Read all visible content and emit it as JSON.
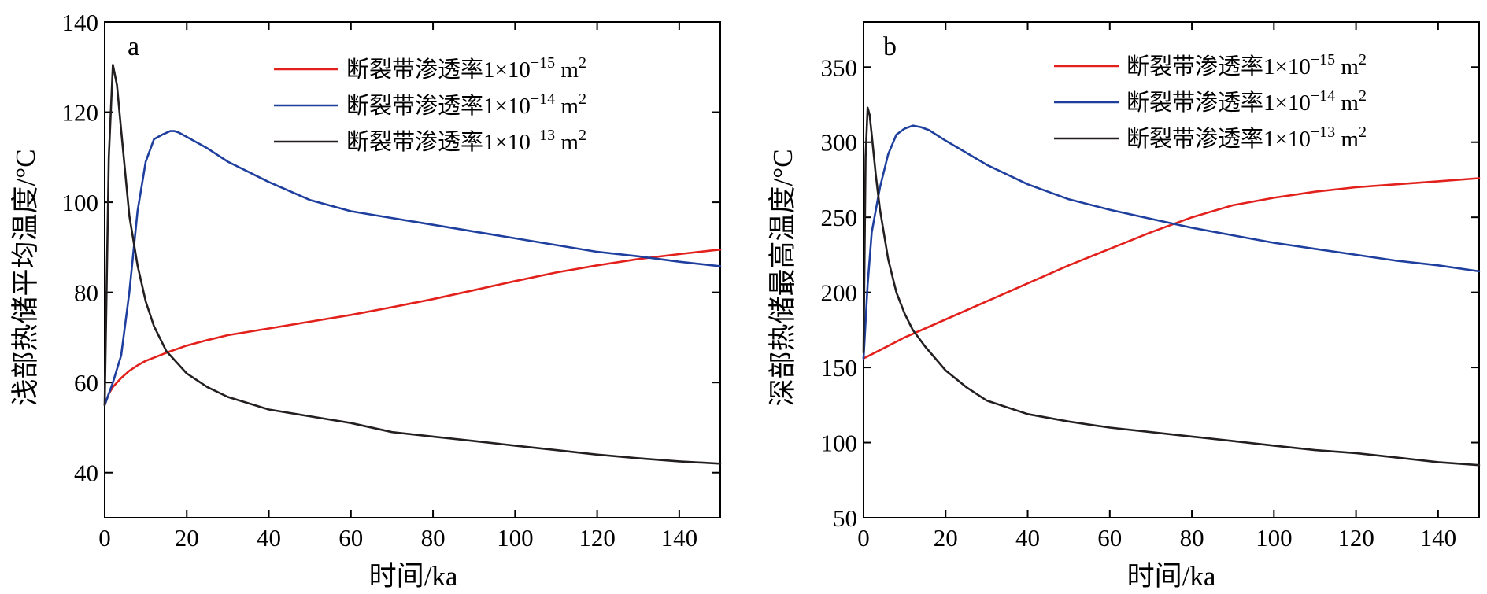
{
  "chart_data": [
    {
      "type": "line",
      "panel_label": "a",
      "xlabel": "时间/ka",
      "ylabel": "浅部热储平均温度/°C",
      "xlim": [
        0,
        150
      ],
      "ylim": [
        30,
        140
      ],
      "xticks": [
        0,
        20,
        40,
        60,
        80,
        100,
        120,
        140
      ],
      "yticks": [
        40,
        60,
        80,
        100,
        120,
        140
      ],
      "grid": false,
      "legend_position": "top-right",
      "series": [
        {
          "name": "断裂带渗透率1×10⁻¹⁵ m²",
          "legend_base": "断裂带渗透率1×10",
          "legend_exp": "−15",
          "legend_unit": "m",
          "legend_unit_exp": "2",
          "color": "#e3211c",
          "x": [
            0,
            1,
            2,
            4,
            6,
            8,
            10,
            15,
            20,
            25,
            30,
            40,
            50,
            60,
            70,
            80,
            90,
            100,
            110,
            120,
            130,
            140,
            150
          ],
          "y": [
            55,
            57.5,
            59,
            61,
            62.6,
            63.8,
            64.8,
            66.6,
            68.2,
            69.4,
            70.5,
            72,
            73.5,
            75,
            76.7,
            78.5,
            80.5,
            82.5,
            84.4,
            86,
            87.4,
            88.5,
            89.5
          ]
        },
        {
          "name": "断裂带渗透率1×10⁻¹⁴ m²",
          "legend_base": "断裂带渗透率1×10",
          "legend_exp": "−14",
          "legend_unit": "m",
          "legend_unit_exp": "2",
          "color": "#1f3f9e",
          "x": [
            0,
            2,
            4,
            6,
            8,
            10,
            12,
            14,
            16,
            17,
            18,
            20,
            25,
            30,
            40,
            50,
            60,
            70,
            80,
            90,
            100,
            110,
            120,
            130,
            140,
            150
          ],
          "y": [
            55,
            60,
            66,
            80,
            98,
            109,
            114,
            115,
            115.8,
            115.8,
            115.5,
            114.5,
            112,
            109,
            104.5,
            100.5,
            98,
            96.5,
            95,
            93.5,
            92,
            90.5,
            89,
            88,
            86.8,
            85.8
          ]
        },
        {
          "name": "断裂带渗透率1×10⁻¹³ m²",
          "legend_base": "断裂带渗透率1×10",
          "legend_exp": "−13",
          "legend_unit": "m",
          "legend_unit_exp": "2",
          "color": "#231f20",
          "x": [
            0,
            1,
            2,
            3,
            4,
            6,
            8,
            10,
            12,
            15,
            20,
            25,
            30,
            40,
            50,
            60,
            70,
            80,
            90,
            100,
            110,
            120,
            130,
            140,
            150
          ],
          "y": [
            55,
            110,
            130.5,
            126,
            116,
            97,
            86,
            78,
            72.5,
            67,
            62,
            59,
            56.8,
            54,
            52.5,
            51,
            49,
            48,
            47,
            46,
            45,
            44,
            43.2,
            42.5,
            42
          ]
        }
      ]
    },
    {
      "type": "line",
      "panel_label": "b",
      "xlabel": "时间/ka",
      "ylabel": "深部热储最高温度/°C",
      "xlim": [
        0,
        150
      ],
      "ylim": [
        50,
        380
      ],
      "xticks": [
        0,
        20,
        40,
        60,
        80,
        100,
        120,
        140
      ],
      "yticks": [
        50,
        100,
        150,
        200,
        250,
        300,
        350
      ],
      "grid": false,
      "legend_position": "top-right",
      "series": [
        {
          "name": "断裂带渗透率1×10⁻¹⁵ m²",
          "legend_base": "断裂带渗透率1×10",
          "legend_exp": "−15",
          "legend_unit": "m",
          "legend_unit_exp": "2",
          "color": "#e3211c",
          "x": [
            0,
            5,
            10,
            20,
            30,
            40,
            50,
            60,
            70,
            80,
            90,
            100,
            110,
            120,
            130,
            140,
            150
          ],
          "y": [
            156,
            163,
            170,
            182,
            194,
            206,
            218,
            229,
            240,
            250,
            258,
            263,
            267,
            270,
            272,
            274,
            276
          ]
        },
        {
          "name": "断裂带渗透率1×10⁻¹⁴ m²",
          "legend_base": "断裂带渗透率1×10",
          "legend_exp": "−14",
          "legend_unit": "m",
          "legend_unit_exp": "2",
          "color": "#1f3f9e",
          "x": [
            0,
            1,
            2,
            4,
            6,
            8,
            10,
            12,
            14,
            16,
            20,
            30,
            40,
            50,
            60,
            70,
            80,
            90,
            100,
            110,
            120,
            130,
            140,
            150
          ],
          "y": [
            156,
            205,
            240,
            270,
            292,
            305,
            309,
            311,
            310,
            308,
            301,
            285,
            272,
            262,
            255,
            249,
            243,
            238,
            233,
            229,
            225,
            221,
            218,
            214
          ]
        },
        {
          "name": "断裂带渗透率1×10⁻¹³ m²",
          "legend_base": "断裂带渗透率1×10",
          "legend_exp": "−13",
          "legend_unit": "m",
          "legend_unit_exp": "2",
          "color": "#231f20",
          "x": [
            0,
            0.5,
            1,
            1.5,
            2,
            3,
            4,
            6,
            8,
            10,
            12,
            15,
            20,
            25,
            30,
            40,
            50,
            60,
            70,
            80,
            90,
            100,
            110,
            120,
            130,
            140,
            150
          ],
          "y": [
            160,
            290,
            323,
            318,
            305,
            278,
            255,
            222,
            200,
            186,
            175,
            164,
            148,
            137,
            128,
            119,
            114,
            110,
            107,
            104,
            101,
            98,
            95,
            93,
            90,
            87,
            85
          ]
        }
      ]
    }
  ]
}
